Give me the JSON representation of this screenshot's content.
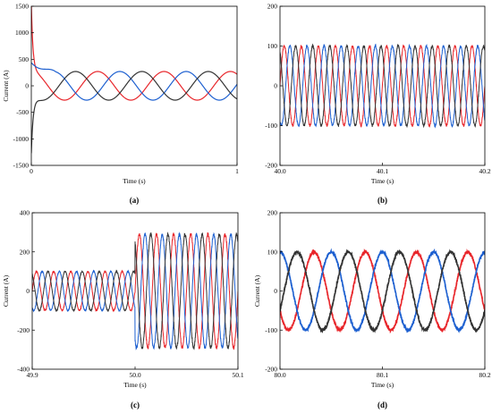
{
  "figure": {
    "background": "#ffffff",
    "phase_colors": {
      "phase_a": "#e8252a",
      "phase_b": "#1c5fd0",
      "phase_c": "#333333"
    }
  },
  "chart_data": [
    {
      "id": "a",
      "type": "line",
      "panel_label": "(a)",
      "xlabel": "Time (s)",
      "ylabel": "Current (A)",
      "xlim": [
        0,
        1
      ],
      "ylim": [
        -1500,
        1500
      ],
      "x_ticks": [
        0,
        1
      ],
      "x_tick_labels": [
        "0",
        "1"
      ],
      "y_ticks": [
        -1500,
        -1000,
        -500,
        0,
        500,
        1000,
        1500
      ],
      "y_tick_labels": [
        "-1500",
        "-1000",
        "-500",
        "0",
        "500",
        "1000",
        "1500"
      ],
      "grid": false,
      "frequency_hz": 3.1,
      "steady_amplitude": 270,
      "startup_transient": {
        "phase_a": {
          "peak": 1550,
          "decay_s": 0.008
        },
        "phase_b": {
          "peak": 500,
          "decay_s": 0.05
        },
        "phase_c": {
          "peak": -1270,
          "decay_s": 0.01
        }
      },
      "series": [
        {
          "phase": "phase_a",
          "color": "#e8252a",
          "phase_offset_deg": 90
        },
        {
          "phase": "phase_b",
          "color": "#1c5fd0",
          "phase_offset_deg": -30
        },
        {
          "phase": "phase_c",
          "color": "#333333",
          "phase_offset_deg": 210
        }
      ]
    },
    {
      "id": "b",
      "type": "line",
      "panel_label": "(b)",
      "xlabel": "Time (s)",
      "ylabel": "",
      "xlim": [
        40.0,
        40.2
      ],
      "ylim": [
        -200,
        200
      ],
      "x_ticks": [
        40.0,
        40.1,
        40.2
      ],
      "x_tick_labels": [
        "40.0",
        "40.1",
        "40.2"
      ],
      "y_ticks": [
        -200,
        -100,
        0,
        100,
        200
      ],
      "y_tick_labels": [
        "-200",
        "-100",
        "0",
        "100",
        "200"
      ],
      "grid": false,
      "frequency_hz": 60,
      "amplitude": 100,
      "series": [
        {
          "phase": "phase_a",
          "color": "#e8252a",
          "phase_offset_deg": 0
        },
        {
          "phase": "phase_b",
          "color": "#1c5fd0",
          "phase_offset_deg": -120
        },
        {
          "phase": "phase_c",
          "color": "#333333",
          "phase_offset_deg": 120
        }
      ]
    },
    {
      "id": "c",
      "type": "line",
      "panel_label": "(c)",
      "xlabel": "Time (s)",
      "ylabel": "Current (A)",
      "xlim": [
        49.9,
        50.1
      ],
      "ylim": [
        -400,
        400
      ],
      "x_ticks": [
        49.9,
        50.0,
        50.1
      ],
      "x_tick_labels": [
        "49.9",
        "50.0",
        "50.1"
      ],
      "y_ticks": [
        -400,
        -200,
        0,
        200,
        400
      ],
      "y_tick_labels": [
        "-400",
        "-200",
        "0",
        "200",
        "400"
      ],
      "grid": false,
      "frequency_hz": 60,
      "amplitude_before": 100,
      "amplitude_after": 290,
      "step_time_s": 50.0,
      "series": [
        {
          "phase": "phase_a",
          "color": "#e8252a",
          "phase_offset_deg": 0
        },
        {
          "phase": "phase_b",
          "color": "#1c5fd0",
          "phase_offset_deg": -120
        },
        {
          "phase": "phase_c",
          "color": "#333333",
          "phase_offset_deg": 120
        }
      ]
    },
    {
      "id": "d",
      "type": "line",
      "panel_label": "(d)",
      "xlabel": "Time (s)",
      "ylabel": "Current (A)",
      "xlim": [
        80.0,
        80.2
      ],
      "ylim": [
        -200,
        200
      ],
      "x_ticks": [
        80.0,
        80.1,
        80.2
      ],
      "x_tick_labels": [
        "80.0",
        "80.1",
        "80.2"
      ],
      "y_ticks": [
        -200,
        -100,
        0,
        100,
        200
      ],
      "y_tick_labels": [
        "-200",
        "-100",
        "0",
        "100",
        "200"
      ],
      "grid": false,
      "frequency_hz": 20,
      "amplitude": 100,
      "series": [
        {
          "phase": "phase_a",
          "color": "#e8252a",
          "phase_offset_deg": 210
        },
        {
          "phase": "phase_b",
          "color": "#1c5fd0",
          "phase_offset_deg": 90
        },
        {
          "phase": "phase_c",
          "color": "#333333",
          "phase_offset_deg": -30
        }
      ]
    }
  ]
}
